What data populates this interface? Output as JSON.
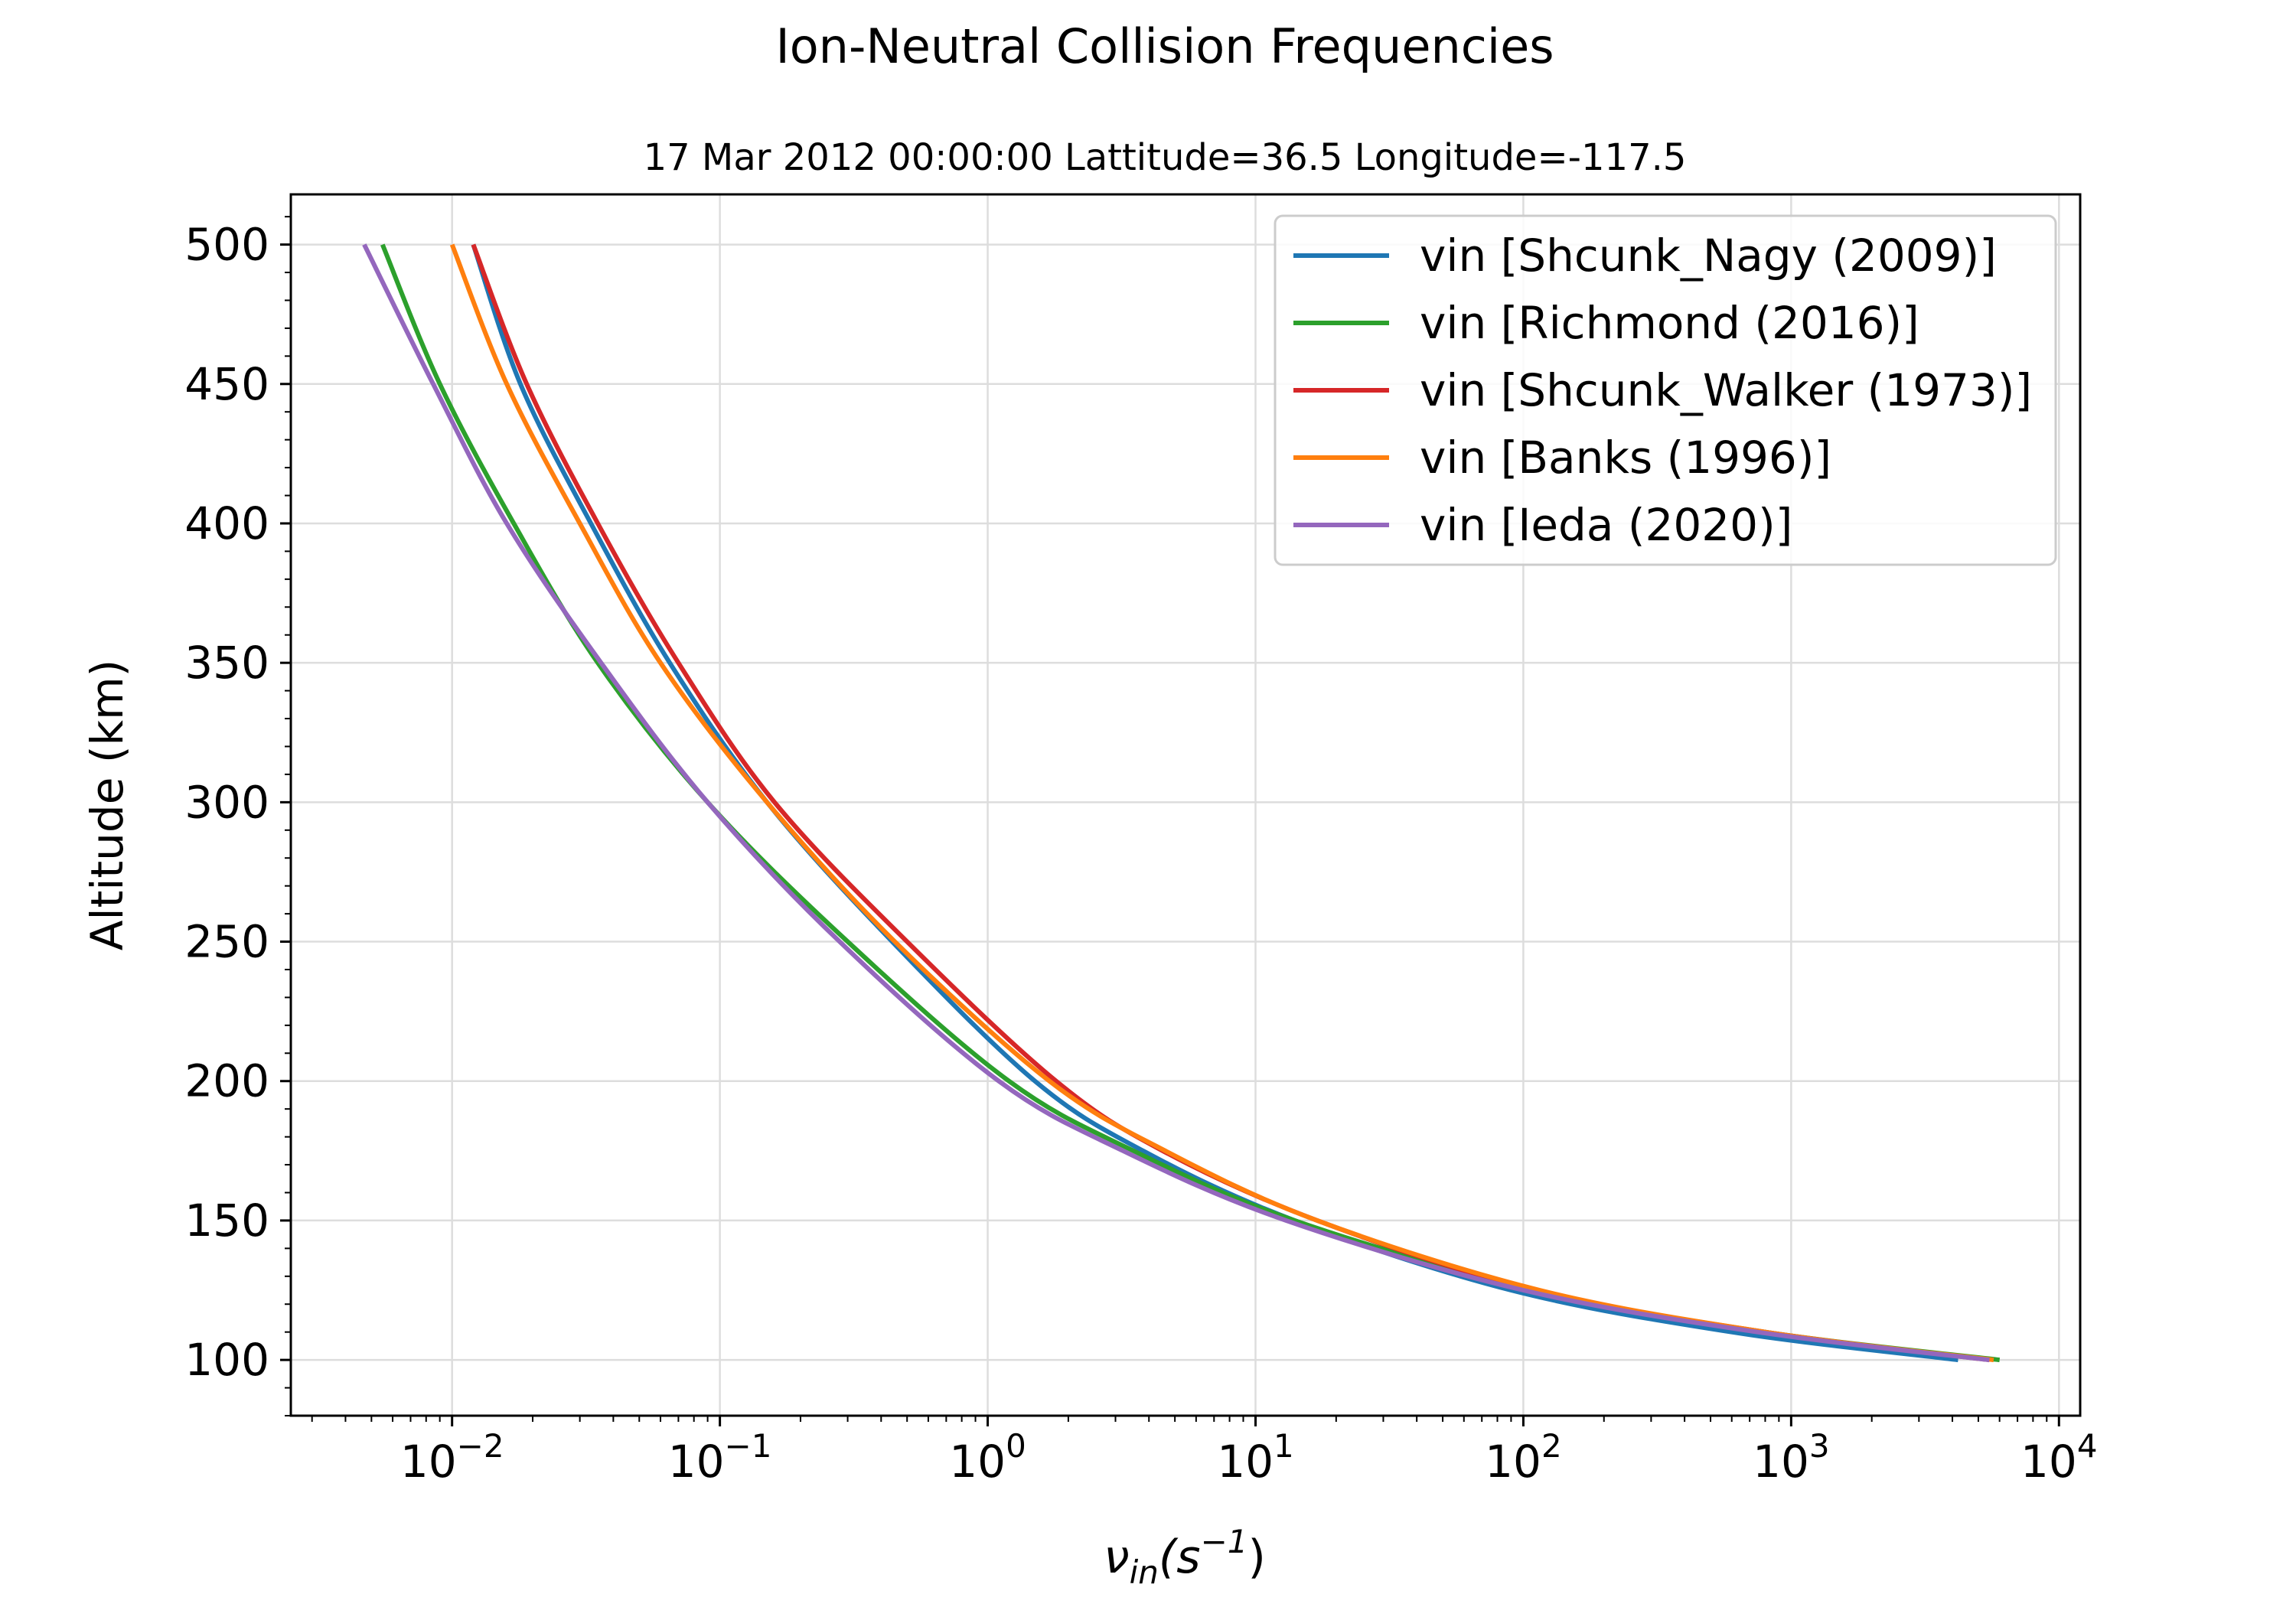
{
  "chart_data": {
    "type": "line",
    "suptitle": "Ion-Neutral Collision Frequencies",
    "title": "17 Mar 2012 00:00:00 Lattitude=36.5 Longitude=-117.5",
    "xlabel": {
      "sym": "ν",
      "sub": "in",
      "open": "(s",
      "exp": "−1",
      "close": ")"
    },
    "ylabel": "Altitude (km)",
    "xscale": "log",
    "xlim": [
      0.0025,
      12000
    ],
    "ylim": [
      80,
      518
    ],
    "grid": true,
    "legend_position": "upper right",
    "xticks": [
      {
        "value": 0.01,
        "base": "10",
        "exp": "−2"
      },
      {
        "value": 0.1,
        "base": "10",
        "exp": "−1"
      },
      {
        "value": 1,
        "base": "10",
        "exp": "0"
      },
      {
        "value": 10,
        "base": "10",
        "exp": "1"
      },
      {
        "value": 100,
        "base": "10",
        "exp": "2"
      },
      {
        "value": 1000,
        "base": "10",
        "exp": "3"
      },
      {
        "value": 10000,
        "base": "10",
        "exp": "4"
      }
    ],
    "yticks": [
      100,
      150,
      200,
      250,
      300,
      350,
      400,
      450,
      500
    ],
    "y": [
      100,
      110,
      125,
      150,
      175,
      200,
      250,
      300,
      350,
      400,
      450,
      500
    ],
    "series": [
      {
        "name": "vin [Shcunk_Nagy (2009)]",
        "color": "#1f77b4",
        "x": [
          4200,
          600,
          90,
          14,
          3.8,
          1.5,
          0.44,
          0.15,
          0.065,
          0.033,
          0.018,
          0.012
        ]
      },
      {
        "name": "vin [Richmond (2016)]",
        "color": "#2ca02c",
        "x": [
          6000,
          800,
          110,
          14,
          3.5,
          1.2,
          0.3,
          0.09,
          0.035,
          0.017,
          0.009,
          0.0055
        ]
      },
      {
        "name": "vin [Shcunk_Walker (1973)]",
        "color": "#d62728",
        "x": [
          5500,
          800,
          110,
          17,
          4.5,
          1.8,
          0.5,
          0.16,
          0.07,
          0.035,
          0.019,
          0.012
        ]
      },
      {
        "name": "vin [Banks (1996)]",
        "color": "#ff7f0e",
        "x": [
          5700,
          800,
          115,
          17,
          4.6,
          1.7,
          0.45,
          0.15,
          0.06,
          0.03,
          0.016,
          0.01
        ]
      },
      {
        "name": "vin [Ieda (2020)]",
        "color": "#9467bd",
        "x": [
          5500,
          750,
          100,
          13,
          3.2,
          1.1,
          0.28,
          0.09,
          0.036,
          0.016,
          0.0085,
          0.0047
        ]
      }
    ]
  }
}
